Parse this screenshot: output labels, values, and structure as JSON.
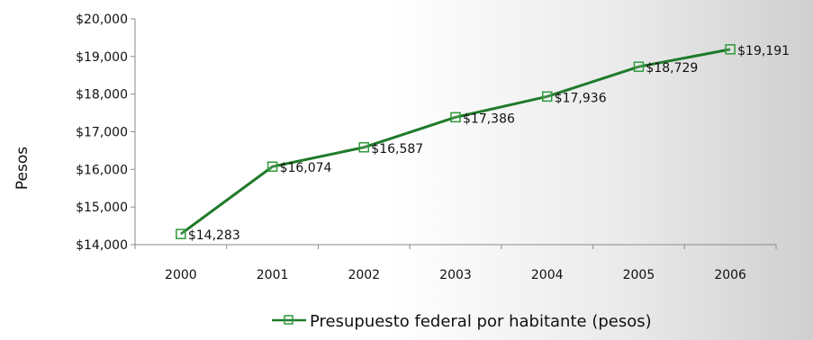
{
  "chart_data": {
    "type": "line",
    "categories": [
      "2000",
      "2001",
      "2002",
      "2003",
      "2004",
      "2005",
      "2006"
    ],
    "series": [
      {
        "name": "Presupuesto federal por habitante (pesos)",
        "values": [
          14283,
          16074,
          16587,
          17386,
          17936,
          18729,
          19191
        ],
        "labels": [
          "$14,283",
          "$16,074",
          "$16,587",
          "$17,386",
          "$17,936",
          "$18,729",
          "$19,191"
        ]
      }
    ],
    "ylabel": "Pesos",
    "xlabel": "",
    "ylim": [
      14000,
      20000
    ],
    "yticks": [
      {
        "value": 14000,
        "label": "$14,000"
      },
      {
        "value": 15000,
        "label": "$15,000"
      },
      {
        "value": 16000,
        "label": "$16,000"
      },
      {
        "value": 17000,
        "label": "$17,000"
      },
      {
        "value": 18000,
        "label": "$18,000"
      },
      {
        "value": 19000,
        "label": "$19,000"
      },
      {
        "value": 20000,
        "label": "$20,000"
      }
    ],
    "grid": false,
    "legend_position": "bottom",
    "colors": {
      "line": "#1f7a2a",
      "marker": "#2e9a3a",
      "axis": "#8a8a8a",
      "text": "#111111"
    }
  }
}
